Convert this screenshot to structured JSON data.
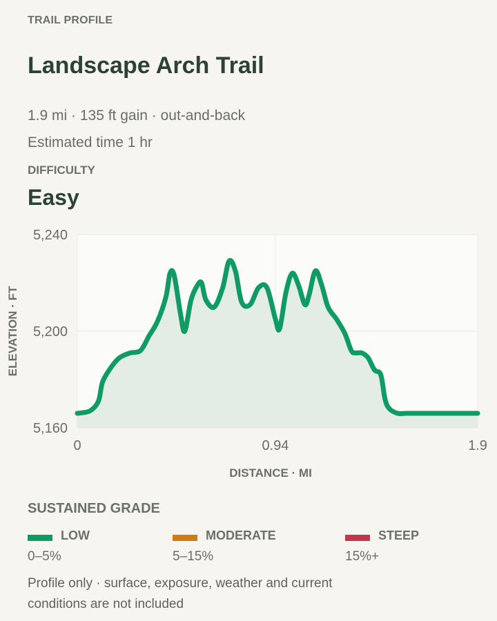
{
  "header": {
    "eyebrow": "TRAIL PROFILE",
    "title": "Landscape Arch Trail",
    "stats": "1.9 mi · 135 ft gain · out-and-back",
    "time": "Estimated time 1 hr",
    "difficulty_label": "DIFFICULTY",
    "difficulty_value": "Easy"
  },
  "colors": {
    "line": "#0f9b63",
    "fill": "#e4ede5",
    "low": "#0f9b63",
    "moderate": "#d07a12",
    "steep": "#c4374a"
  },
  "chart_data": {
    "type": "area",
    "xlabel": "DISTANCE · MI",
    "ylabel": "ELEVATION · FT",
    "xlim": [
      0,
      1.9
    ],
    "ylim": [
      5160,
      5240
    ],
    "xticks": [
      0,
      0.94,
      1.9
    ],
    "xtick_labels": [
      "0",
      "0.94",
      "1.9"
    ],
    "yticks": [
      5160,
      5200,
      5240
    ],
    "ytick_labels": [
      "5,160",
      "5,200",
      "5,240"
    ],
    "grid": true,
    "series": [
      {
        "x": [
          0,
          0.06,
          0.1,
          0.12,
          0.16,
          0.2,
          0.25,
          0.3,
          0.34,
          0.38,
          0.42,
          0.44,
          0.46,
          0.49,
          0.51,
          0.54,
          0.57,
          0.59,
          0.61,
          0.65,
          0.69,
          0.72,
          0.75,
          0.78,
          0.82,
          0.86,
          0.9,
          0.94,
          0.96,
          0.99,
          1.02,
          1.05,
          1.08,
          1.1,
          1.13,
          1.16,
          1.19,
          1.23,
          1.27,
          1.3,
          1.32,
          1.35,
          1.38,
          1.41,
          1.44,
          1.46,
          1.48,
          1.52,
          1.56,
          1.6,
          1.64,
          1.69,
          1.73,
          1.76,
          1.79,
          1.82,
          1.86,
          1.9
        ],
        "y": [
          5166,
          5167,
          5171,
          5179,
          5185,
          5189,
          5191,
          5192,
          5198,
          5204,
          5214,
          5224,
          5223,
          5207,
          5200,
          5213,
          5219,
          5220,
          5213,
          5210,
          5218,
          5229,
          5225,
          5212,
          5211,
          5218,
          5218,
          5205,
          5201,
          5216,
          5224,
          5219,
          5211,
          5215,
          5225,
          5219,
          5210,
          5205,
          5199,
          5192,
          5191,
          5191,
          5189,
          5184,
          5182,
          5172,
          5168,
          5166,
          5166,
          5166,
          5166,
          5166,
          5166,
          5166,
          5166,
          5166,
          5166,
          5166
        ]
      }
    ]
  },
  "grade": {
    "title": "SUSTAINED GRADE",
    "items": [
      {
        "name": "LOW",
        "range": "0–5%"
      },
      {
        "name": "MODERATE",
        "range": "5–15%"
      },
      {
        "name": "STEEP",
        "range": "15%+"
      }
    ]
  },
  "footnote": "Profile only · surface, exposure, weather and current conditions are not included"
}
